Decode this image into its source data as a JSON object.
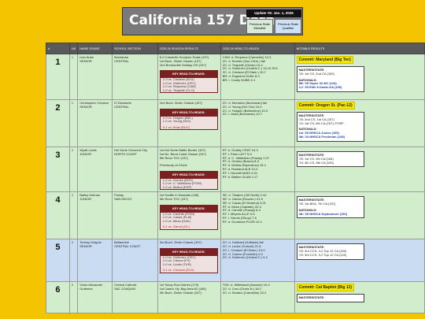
{
  "header": {
    "title": "California 157 Data",
    "updated": "Update #6: Jan. 1, 2026",
    "prev_label": "Previous State Medalist",
    "qual_label": "Previous State Qualifier"
  },
  "columns": [
    "#",
    "LW",
    "NAME GRADE",
    "SCHOOL SECTION",
    "2025-26 SEASON RESULTS",
    "2025-26 HEAD-TO-HEADS",
    "NOTABLE RESULTS"
  ],
  "rows": [
    {
      "rank": "1",
      "lw": "1",
      "name": "Ivan Arias",
      "grade": "SENIOR",
      "school": "Buchanan",
      "section": "CENTRAL",
      "results": [
        "6-0 Camarillo Scorpion Duals (157)",
        "1st Buch. Zinkin Classic (157)",
        "2nd Brecksville Holiday-OH (157)"
      ],
      "h2h_title": "KEY HEAD-TO-HEADS:",
      "h2h": [
        "1-0 vs. Creason (ELD)",
        "1-0 vs. Gutierrez (CEC)",
        "1-0 vs. Requena (CAM)",
        "1-0 vs. Tirapelle (CLO)"
      ],
      "h2h_loss": [],
      "heads": [
        "CAM: d. Requena (Camarillo) 10-3",
        "ZC: d. Kessler (San Clem.) fall",
        "ZC: d. Tirapelle (Clovis) 19-4",
        "ZC: d. Gutierrez (Central C.) 13-10 SV1",
        "ZC: d. Creason (El Diam.) 10-7",
        "BR: d. Esguerra DUBL 8-3",
        "BR: l. Cosby DUBD 4-1"
      ],
      "commit": "Commit: Maryland (Big Ten)",
      "notes": [
        "MASTERS/STATE:",
        "'25: 1st CS, 2nd CA (150)"
      ],
      "nationals": [
        "NATIONALS:",
        "8th '25 Super 32-NC (144)",
        "3-2 '25 Elite 8 Duals-GA (150)"
      ]
    },
    {
      "rank": "2",
      "lw": "2",
      "name": "Christopher Creason",
      "grade": "SENIOR",
      "school": "El Diamante",
      "section": "CENTRAL",
      "results": [
        "2nd Buch. Zinkin Classic (157)"
      ],
      "h2h_title": "KEY HEAD-TO-HEADS:",
      "h2h": [
        "1-0 vs. Holguin (BEL)",
        "1-0 vs. Young (DIO)"
      ],
      "h2h_loss": [
        "0-1 vs. Arias (BUC)"
      ],
      "heads": [
        "ZC: d. Montalvo (Buchanan) fall",
        "ZC: d. Young (Del Oro) 15-0",
        "ZC: d. Holguin (Bellarmine) 10-0",
        "ZC: l. Arias (Buchanan) 10-7"
      ],
      "commit": "Commit: Oregon St. (Pac-12)",
      "notes": [
        "MASTERS/STATE:",
        "'25: 2nd CS, 1st CA (157)",
        "'24: 1st CS, 6th CA (157); FORF"
      ],
      "nationals": [
        "NATIONALS:",
        "1st '25 NHSCA Junior (165)",
        "4th '24 NHSCA Freshman (145)"
      ]
    },
    {
      "rank": "3",
      "lw": "3",
      "name": "Wyatt Lewis",
      "grade": "JUNIOR",
      "school": "Del Norte Crescent City",
      "section": "NORTH COAST",
      "results": [
        "1st Del Norte Battle Border (157)",
        "1st No. Bend Coast Classic (157)",
        "5th Reno TOC (157)",
        "",
        "Previously at Clovis"
      ],
      "h2h_title": "KEY HEAD-TO-HEADS:",
      "h2h": [
        "1-0 vs. Gomez (BOS)",
        "1-0 vs. C. Valdivieso (POW)",
        "1-0 vs. Molina (ESP)"
      ],
      "h2h_loss": [],
      "heads": [
        "RT: d. Godely CRAT 16-3",
        "RT: l. Paris LAYT 5-0",
        "RT: d. C. Valdivieso (Poway) 1:37",
        "RT: d. Gomez (Bosco) 8-3",
        "RT: d. Molina (Esperanza) 15-1",
        "RT: d. Rowland ALB 10-3",
        "RT: l. Horvath MADI 4-01",
        "RT: d. Balden SLAM 1:17"
      ],
      "commit": "",
      "notes": [
        "MASTERS/STATE:",
        "'25: 1st CS, 9th CA (165)",
        "'24: 4th CS, 8th CA (150)"
      ],
      "nationals": []
    },
    {
      "rank": "4",
      "lw": "4",
      "name": "Bailey Holman",
      "grade": "JUNIOR",
      "school": "Poway",
      "section": "SAN DIEGO",
      "results": [
        "1st Scuffle in Eastvale (165)",
        "5th Reno TOC (157)"
      ],
      "h2h_title": "KEY HEAD-TO-HEADS:",
      "h2h": [
        "1-0 vs. Camrite (POW)",
        "1-0 vs. Casas (ELM)",
        "1-0 vs. Meza (OAK)"
      ],
      "h2h_loss": [
        "0-1 vs. Garcia (GL)"
      ],
      "heads": [
        "SE: d. Tinajero (JW North) 2-42",
        "SE: d. Garcia (Roosev.) 21-5",
        "SE: d. Casas (El Modena) 0:21",
        "RT: d. Meza (Oakdale) 22-4",
        "RT: d. Camrite (Poway) 6-4",
        "RT: l. Meyers ALLE 9-5",
        "RT: l. Garcia (Gilroy) 7-5",
        "RT: d. Goodman PLGR 10-1"
      ],
      "commit": "",
      "notes": [
        "MASTERS/STATE:",
        "'25: 1st BDA, 7th CA (157)"
      ],
      "nationals": [
        "NATIONALS:",
        "4th '25 NHSCA Sophomore (152)"
      ]
    },
    {
      "rank": "5",
      "lw": "5",
      "name": "Tommy Holguin",
      "grade": "SENIOR",
      "school": "Bellarmine",
      "section": "CENTRAL COAST",
      "results": [
        "3rd Buch. Zinkin Classic (157)"
      ],
      "h2h_title": "KEY HEAD-TO-HEADS:",
      "h2h": [
        "1-0 vs. Gutierrez (CEC)",
        "1-0 vs. Carson (FV)",
        "1-0 vs. Louke (TUR)"
      ],
      "h2h_loss": [
        "0-1 vs. Creason (ELD)"
      ],
      "heads": [
        "ZC: d. Hubbard (Hollister) fall",
        "ZC: d. Louke (Turlock) 21-5",
        "ZC: l. Creason (El Diam.) 10-0",
        "ZC: d. Carson (Fountain) 4-0",
        "ZC: d. Gutierrez (Central C.) 4-2"
      ],
      "commit": "",
      "notes": [
        "MASTERS/STATE:",
        "'25: 3rd CCS, 4-2 Top 12 CA (150)",
        "'23: 3rd CCS, 3-2 Top 12 CA (120)"
      ],
      "nationals": []
    },
    {
      "rank": "6",
      "lw": "6",
      "name": "Victor Alexander Gutierrez",
      "grade": "",
      "school": "Central Catholic",
      "section": "SAC JOAQUIN",
      "results": [
        "1st Tokay Rod Gaines (175)",
        "1st Castro Vly. Bay Area 62 (165)",
        "4th Buch. Zinkin Classic (157)"
      ],
      "h2h_title": "",
      "h2h": [],
      "h2h_loss": [],
      "heads": [
        "TOK: d. Mittelstadt (Amador) 19-4",
        "ZC: d. Cruz (Clovis N.) 18-2",
        "ZC: d. Sedano (Camarillo) 20-2"
      ],
      "commit": "Commit: Cal Baptist (Big 12)",
      "notes": [
        "MASTERS/STATE:"
      ],
      "nationals": []
    }
  ]
}
